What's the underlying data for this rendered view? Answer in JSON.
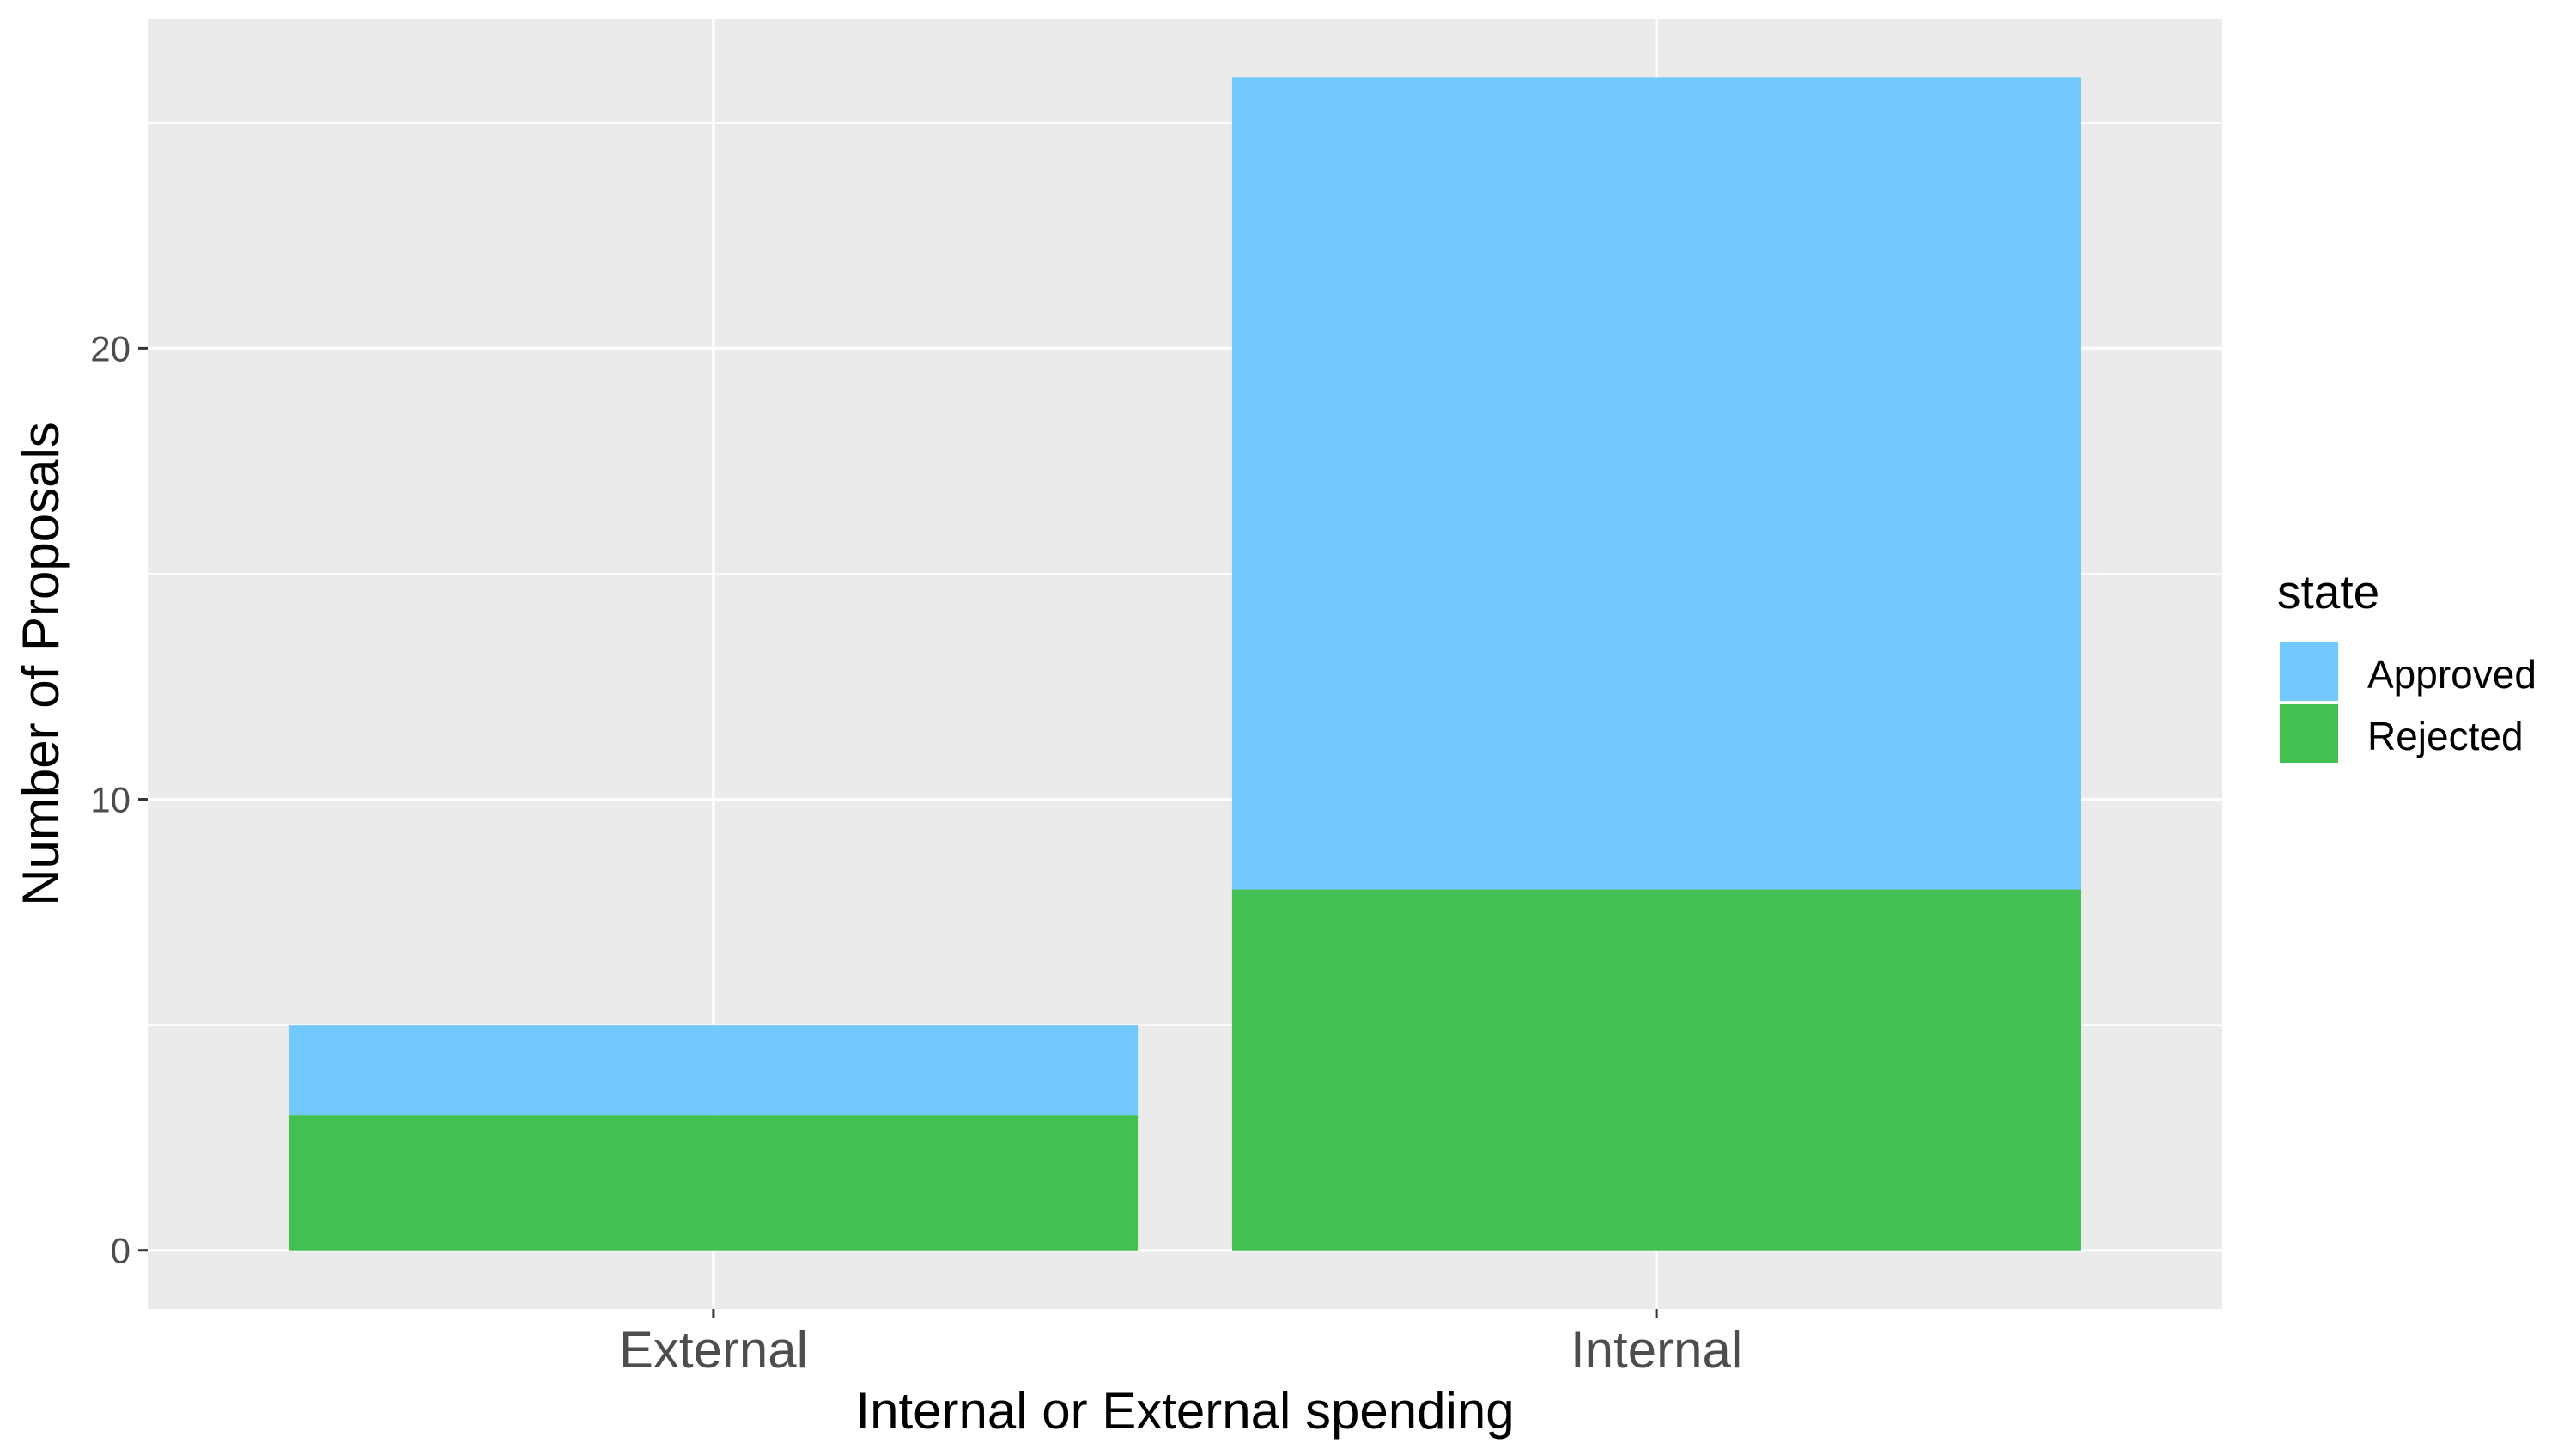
{
  "chart_data": {
    "type": "bar",
    "stacked": true,
    "categories": [
      "External",
      "Internal"
    ],
    "series": [
      {
        "name": "Rejected",
        "values": [
          3,
          8
        ],
        "color": "#42c052"
      },
      {
        "name": "Approved",
        "values": [
          2,
          18
        ],
        "color": "#71c9fe"
      }
    ],
    "xlabel": "Internal or External spending",
    "ylabel": "Number of Proposals",
    "ylim": [
      -1.3,
      27.3
    ],
    "y_ticks": [
      0,
      10,
      20
    ],
    "y_tick_labels": [
      "0",
      "10",
      "20"
    ],
    "grid": true,
    "panel_background": "#ebebeb",
    "grid_color": "#ffffff",
    "legend": {
      "title": "state",
      "position": "right",
      "entries": [
        {
          "label": "Approved",
          "color": "#71c9fe"
        },
        {
          "label": "Rejected",
          "color": "#42c052"
        }
      ]
    }
  }
}
